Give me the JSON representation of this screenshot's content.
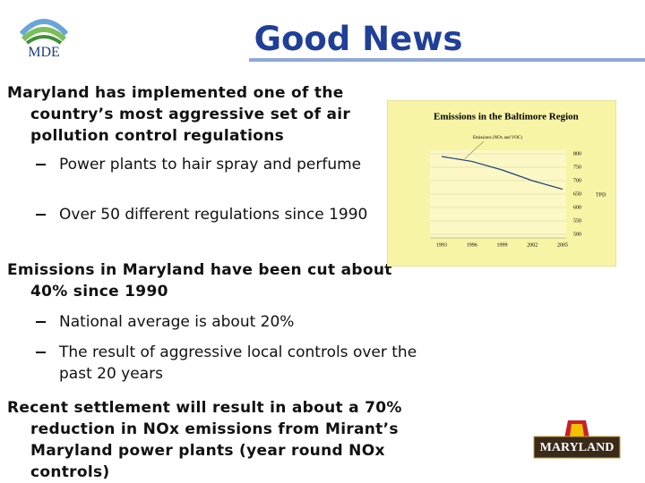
{
  "header": {
    "logo": "MDE",
    "title": "Good News"
  },
  "bullets": [
    {
      "level": 1,
      "text": "Maryland has implemented one of the country’s most aggressive set of air pollution control regulations"
    },
    {
      "level": 2,
      "text": "Power plants to hair spray and perfume"
    },
    {
      "level": 2,
      "text": "Over 50 different regulations since 1990"
    },
    {
      "level": 1,
      "text": "Emissions in Maryland have been cut about 40% since 1990"
    },
    {
      "level": 2,
      "text": "National average is about 20%"
    },
    {
      "level": 2,
      "text": "The result of aggressive local controls over the past 20 years"
    },
    {
      "level": 1,
      "text": "Recent settlement will result in about a 70% reduction in NOx emissions from Mirant’s Maryland power plants (year round NOx controls)"
    }
  ],
  "footer_logo": "MARYLAND",
  "chart_data": {
    "type": "line",
    "title": "Emissions in the Baltimore Region",
    "y_label": "TPD",
    "categories": [
      "1993",
      "1996",
      "1999",
      "2002",
      "2005"
    ],
    "series": [
      {
        "name": "Emissions (NOx and VOC)",
        "color": "#1f3f7a",
        "values": [
          790,
          772,
          740,
          700,
          668
        ]
      }
    ],
    "ylim": [
      500,
      800
    ],
    "yticks": [
      500,
      550,
      600,
      650,
      700,
      750,
      800
    ],
    "grid": true
  }
}
